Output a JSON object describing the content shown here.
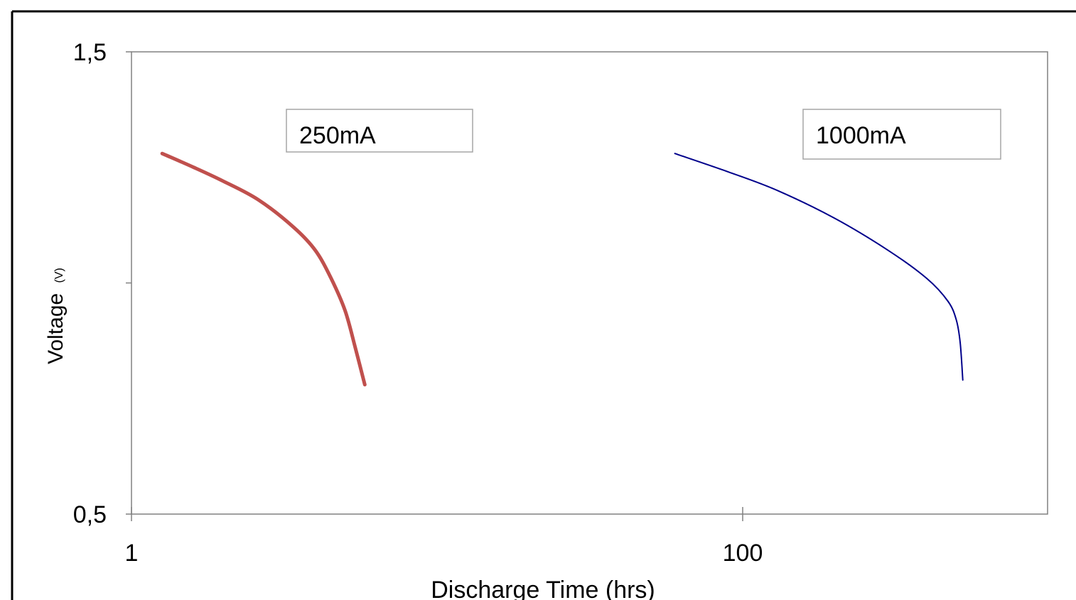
{
  "chart_data": {
    "type": "line",
    "title": "",
    "xlabel": "Discharge Time (hrs)",
    "ylabel": "Voltage",
    "ylabel_unit": "(V)",
    "x_scale": "log",
    "xlim": [
      1,
      1000
    ],
    "ylim": [
      0.5,
      1.5
    ],
    "x_ticks": [
      {
        "value": 1,
        "label": "1"
      },
      {
        "value": 100,
        "label": "100"
      }
    ],
    "y_ticks": [
      {
        "value": 0.5,
        "label": "0,5"
      },
      {
        "value": 1.0,
        "label": ""
      },
      {
        "value": 1.5,
        "label": "1,5"
      }
    ],
    "grid": false,
    "series": [
      {
        "name": "250mA",
        "color": "#c0504d",
        "line_width": "thick",
        "points": [
          [
            1.26,
            1.28
          ],
          [
            1.6,
            1.25
          ],
          [
            2.0,
            1.22
          ],
          [
            2.6,
            1.18
          ],
          [
            3.4,
            1.12
          ],
          [
            4.0,
            1.07
          ],
          [
            4.5,
            1.01
          ],
          [
            5.0,
            0.94
          ],
          [
            5.4,
            0.86
          ],
          [
            5.8,
            0.78
          ]
        ]
      },
      {
        "name": "1000mA",
        "color": "#00008b",
        "line_width": "thin",
        "points": [
          [
            60,
            1.28
          ],
          [
            90,
            1.24
          ],
          [
            130,
            1.2
          ],
          [
            200,
            1.14
          ],
          [
            300,
            1.07
          ],
          [
            400,
            1.01
          ],
          [
            470,
            0.96
          ],
          [
            500,
            0.92
          ],
          [
            515,
            0.87
          ],
          [
            525,
            0.79
          ]
        ]
      }
    ],
    "annotations": [
      {
        "text": "250mA",
        "series": "250mA"
      },
      {
        "text": "1000mA",
        "series": "1000mA"
      }
    ]
  }
}
